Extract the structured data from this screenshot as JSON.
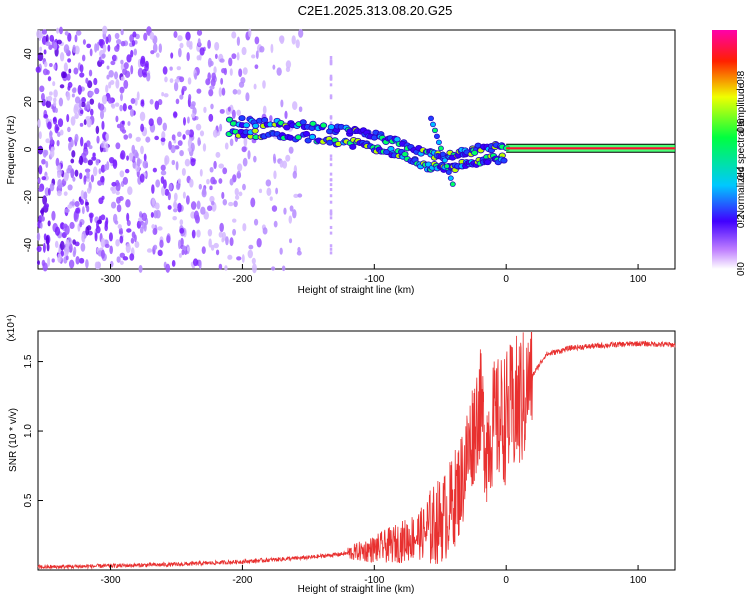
{
  "title": "C2E1.2025.313.08.20.G25",
  "chart_data": [
    {
      "type": "heatmap",
      "xlabel": "Height of straight line (km)",
      "ylabel": "Frequency (Hz)",
      "xlim": [
        -355,
        128
      ],
      "ylim": [
        -50,
        50
      ],
      "xticks": [
        -300,
        -200,
        -100,
        0,
        100
      ],
      "yticks": [
        -40,
        -20,
        0,
        20,
        40
      ],
      "colorbar": {
        "label": "Normalized spectral amplitude",
        "range": [
          0,
          1
        ],
        "ticks": [
          0.0,
          0.2,
          0.4,
          0.6,
          0.8
        ],
        "colormap": [
          "#ffffff",
          "#8a2be2",
          "#0000ff",
          "#00e5ff",
          "#00ff00",
          "#ffff00",
          "#ff0000",
          "#ff00cc"
        ]
      },
      "trace": [
        {
          "x": -210,
          "y": 12
        },
        {
          "x": -180,
          "y": 11
        },
        {
          "x": -150,
          "y": 10
        },
        {
          "x": -120,
          "y": 8
        },
        {
          "x": -100,
          "y": 6
        },
        {
          "x": -80,
          "y": 3
        },
        {
          "x": -60,
          "y": -2
        },
        {
          "x": -45,
          "y": -3
        },
        {
          "x": -30,
          "y": -1
        },
        {
          "x": -15,
          "y": 1
        },
        {
          "x": 0,
          "y": 1
        },
        {
          "x": 128,
          "y": 0
        }
      ]
    },
    {
      "type": "line",
      "xlabel": "Height of straight line (km)",
      "ylabel": "SNR (10 * v/v)",
      "y_multiplier": "(x10⁴)",
      "xlim": [
        -355,
        128
      ],
      "ylim": [
        0,
        1.72
      ],
      "xticks": [
        -300,
        -200,
        -100,
        0,
        100
      ],
      "yticks": [
        0.5,
        1.0,
        1.5
      ],
      "color": "#e8302f",
      "series": [
        {
          "x": [
            -355,
            -300,
            -250,
            -200,
            -150,
            -120,
            -100,
            -80,
            -60,
            -45,
            -35,
            -30,
            -25,
            -20,
            -15,
            -10,
            0,
            10,
            20,
            30,
            50,
            80,
            100,
            128
          ],
          "y": [
            0.02,
            0.03,
            0.04,
            0.06,
            0.09,
            0.12,
            0.15,
            0.2,
            0.28,
            0.4,
            0.6,
            0.8,
            1.0,
            1.2,
            0.9,
            1.05,
            1.1,
            1.2,
            1.4,
            1.55,
            1.6,
            1.62,
            1.63,
            1.62
          ]
        }
      ]
    }
  ]
}
